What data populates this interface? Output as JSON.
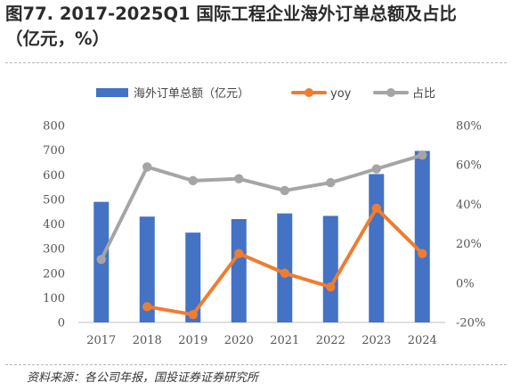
{
  "title": {
    "line1": "图77. 2017-2025Q1 国际工程企业海外订单总额及占比",
    "line2": "（亿元，%）"
  },
  "source": "资料来源：各公司年报，国投证券证券研究所",
  "chart_data": {
    "type": "bar",
    "categories": [
      "2017",
      "2018",
      "2019",
      "2020",
      "2021",
      "2022",
      "2023",
      "2024"
    ],
    "series": [
      {
        "name": "海外订单总额（亿元）",
        "type": "bar",
        "axis": "left",
        "color": "#4472C4",
        "values": [
          490,
          430,
          365,
          420,
          443,
          433,
          603,
          697
        ]
      },
      {
        "name": "yoy",
        "type": "line",
        "axis": "right",
        "color": "#ED7D31",
        "values": [
          null,
          -12,
          -16,
          15,
          5,
          -2,
          38,
          15
        ]
      },
      {
        "name": "占比",
        "type": "line",
        "axis": "right",
        "color": "#A5A5A5",
        "values": [
          12,
          59,
          52,
          53,
          47,
          51,
          58,
          65
        ]
      }
    ],
    "yleft": {
      "ticks": [
        "0",
        "100",
        "200",
        "300",
        "400",
        "500",
        "600",
        "700",
        "800"
      ],
      "lim": [
        0,
        800
      ]
    },
    "yright": {
      "ticks": [
        "-20%",
        "0%",
        "20%",
        "40%",
        "60%",
        "80%"
      ],
      "lim": [
        -20,
        80
      ]
    },
    "legend_position": "top",
    "grid": false
  }
}
